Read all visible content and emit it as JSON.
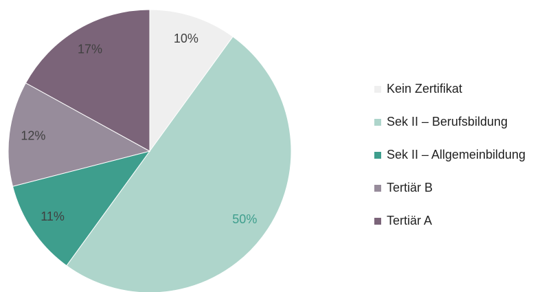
{
  "chart_data": {
    "type": "pie",
    "categories": [
      "Kein Zertifikat",
      "Sek II – Berufsbildung",
      "Sek II – Allgemeinbildung",
      "Tertiär B",
      "Tertiär A"
    ],
    "values": [
      10,
      50,
      11,
      12,
      17
    ],
    "value_labels": [
      "10%",
      "50%",
      "11%",
      "12%",
      "17%"
    ],
    "colors": [
      "#efefef",
      "#aed5cb",
      "#3e9e8d",
      "#978c9b",
      "#7b6479"
    ],
    "label_colors": [
      "#404040",
      "#3e9e8d",
      "#404040",
      "#404040",
      "#404040"
    ],
    "legend": "right"
  }
}
